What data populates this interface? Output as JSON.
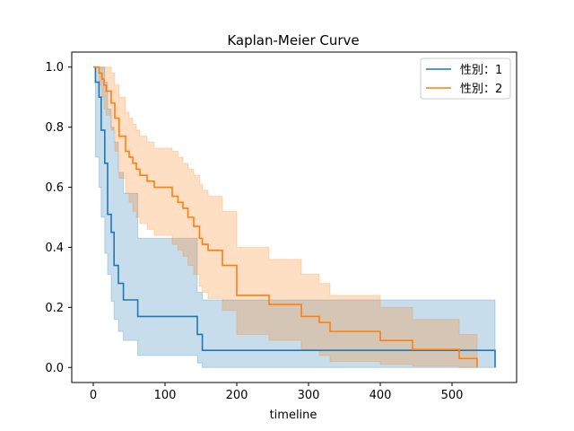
{
  "chart_data": {
    "type": "line",
    "step": true,
    "title": "Kaplan-Meier Curve",
    "xlabel": "timeline",
    "ylabel": "",
    "xlim": [
      -30,
      590
    ],
    "ylim": [
      -0.05,
      1.05
    ],
    "xticks": [
      0,
      100,
      200,
      300,
      400,
      500
    ],
    "yticks": [
      0.0,
      0.2,
      0.4,
      0.6,
      0.8,
      1.0
    ],
    "ytick_labels": [
      "0.0",
      "0.2",
      "0.4",
      "0.6",
      "0.8",
      "1.0"
    ],
    "grid": false,
    "legend_position": "top-right",
    "series": [
      {
        "name": "性別：1",
        "color": "#1f77b4",
        "x": [
          0,
          3,
          8,
          11,
          16,
          20,
          25,
          29,
          35,
          42,
          62,
          145,
          152,
          560,
          560
        ],
        "y": [
          1.0,
          0.95,
          0.9,
          0.79,
          0.68,
          0.51,
          0.45,
          0.34,
          0.28,
          0.225,
          0.17,
          0.11,
          0.057,
          0.057,
          0.0
        ],
        "ci_upper": [
          1.0,
          1.0,
          1.0,
          1.0,
          0.95,
          0.86,
          0.8,
          0.75,
          0.65,
          0.58,
          0.43,
          0.25,
          0.225,
          0.225,
          0.225
        ],
        "ci_lower": [
          1.0,
          0.7,
          0.6,
          0.5,
          0.38,
          0.31,
          0.22,
          0.16,
          0.12,
          0.09,
          0.04,
          0.015,
          0.0,
          0.0,
          0.0
        ]
      },
      {
        "name": "性別：2",
        "color": "#ff7f0e",
        "x": [
          0,
          8,
          12,
          15,
          18,
          25,
          30,
          36,
          45,
          50,
          55,
          60,
          65,
          75,
          85,
          95,
          110,
          118,
          125,
          132,
          140,
          148,
          152,
          160,
          180,
          200,
          245,
          290,
          315,
          330,
          400,
          445,
          510,
          518,
          535
        ],
        "y": [
          1.0,
          0.98,
          0.96,
          0.94,
          0.92,
          0.88,
          0.83,
          0.77,
          0.72,
          0.7,
          0.68,
          0.66,
          0.64,
          0.62,
          0.6,
          0.6,
          0.57,
          0.55,
          0.53,
          0.5,
          0.47,
          0.43,
          0.41,
          0.39,
          0.34,
          0.24,
          0.21,
          0.17,
          0.15,
          0.12,
          0.09,
          0.06,
          0.03,
          0.03,
          0.0
        ],
        "ci_upper": [
          1.0,
          1.0,
          1.0,
          1.0,
          1.0,
          0.98,
          0.94,
          0.9,
          0.85,
          0.83,
          0.81,
          0.79,
          0.77,
          0.75,
          0.73,
          0.73,
          0.72,
          0.7,
          0.68,
          0.66,
          0.64,
          0.61,
          0.59,
          0.57,
          0.52,
          0.4,
          0.36,
          0.31,
          0.28,
          0.24,
          0.2,
          0.16,
          0.11,
          0.11,
          0.11
        ],
        "ci_lower": [
          1.0,
          0.94,
          0.9,
          0.86,
          0.84,
          0.79,
          0.72,
          0.63,
          0.58,
          0.55,
          0.52,
          0.5,
          0.48,
          0.46,
          0.44,
          0.44,
          0.41,
          0.39,
          0.37,
          0.34,
          0.31,
          0.27,
          0.25,
          0.23,
          0.19,
          0.11,
          0.09,
          0.06,
          0.04,
          0.02,
          0.01,
          0.005,
          0.0,
          0.0,
          0.0
        ]
      }
    ]
  }
}
